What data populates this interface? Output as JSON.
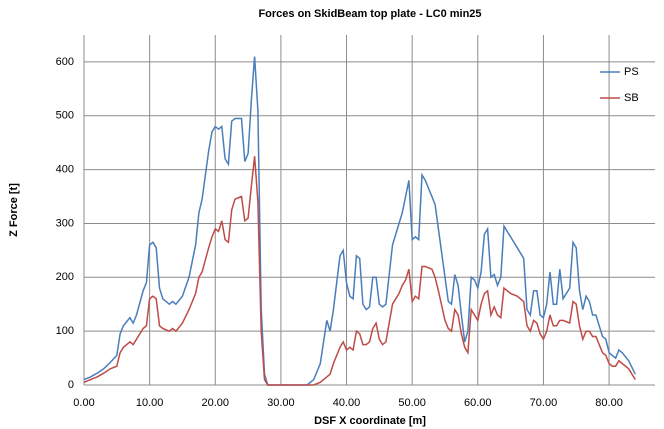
{
  "chart_data": {
    "type": "line",
    "title": "Forces on SkidBeam top plate - LC0 min25",
    "x_label": "DSF X coordinate [m]",
    "y_label": "Z Force [t]",
    "x": [
      0,
      1,
      2,
      3,
      4,
      5,
      5.5,
      6,
      7,
      7.5,
      8,
      9,
      9.5,
      10,
      10.5,
      11,
      11.5,
      12,
      13,
      13.5,
      14,
      15,
      16,
      17,
      17.5,
      18,
      19,
      19.5,
      20,
      20.5,
      21,
      21.5,
      22,
      22.5,
      23,
      24,
      24.5,
      25,
      25.5,
      26,
      26.5,
      27,
      27.5,
      28,
      30,
      32,
      34,
      35,
      36,
      37,
      37.5,
      38,
      39,
      39.5,
      40,
      40.5,
      41,
      41.5,
      42,
      42.5,
      43,
      43.5,
      44,
      44.5,
      45,
      45.5,
      46,
      47,
      48,
      48.5,
      49,
      49.5,
      50,
      50.5,
      51,
      51.5,
      52,
      53,
      53.5,
      54,
      55,
      55.5,
      56,
      56.5,
      57,
      57.5,
      58,
      58.5,
      59,
      59.5,
      60,
      60.5,
      61,
      61.5,
      62,
      62.5,
      63,
      63.5,
      64,
      65,
      66,
      67,
      67.5,
      68,
      68.5,
      69,
      69.5,
      70,
      70.5,
      71,
      71.5,
      72,
      72.5,
      73,
      74,
      74.5,
      75,
      75.5,
      76,
      76.5,
      77,
      77.5,
      78,
      79,
      79.5,
      80,
      80.5,
      81,
      81.5,
      82,
      83,
      84
    ],
    "series": [
      {
        "name": "PS",
        "color": "#4a7ebb",
        "values": [
          10,
          15,
          22,
          30,
          42,
          55,
          95,
          110,
          125,
          115,
          130,
          175,
          190,
          260,
          265,
          255,
          180,
          160,
          150,
          155,
          150,
          165,
          200,
          260,
          320,
          345,
          435,
          470,
          480,
          475,
          480,
          420,
          410,
          490,
          495,
          495,
          415,
          430,
          530,
          610,
          510,
          140,
          20,
          0,
          0,
          0,
          0,
          10,
          40,
          120,
          100,
          140,
          240,
          250,
          190,
          165,
          160,
          240,
          235,
          150,
          140,
          145,
          200,
          200,
          150,
          145,
          150,
          260,
          300,
          320,
          350,
          380,
          270,
          275,
          270,
          390,
          380,
          350,
          335,
          290,
          200,
          155,
          150,
          205,
          185,
          130,
          80,
          100,
          200,
          195,
          180,
          210,
          280,
          290,
          200,
          205,
          185,
          200,
          295,
          275,
          255,
          235,
          140,
          130,
          175,
          175,
          130,
          125,
          150,
          210,
          150,
          150,
          215,
          160,
          180,
          265,
          255,
          175,
          140,
          165,
          155,
          130,
          130,
          90,
          85,
          60,
          55,
          50,
          65,
          60,
          45,
          20
        ]
      },
      {
        "name": "SB",
        "color": "#be4b48",
        "values": [
          5,
          10,
          15,
          22,
          30,
          35,
          60,
          70,
          80,
          75,
          85,
          105,
          110,
          160,
          165,
          160,
          110,
          105,
          100,
          105,
          100,
          115,
          140,
          170,
          200,
          210,
          255,
          275,
          290,
          285,
          305,
          270,
          265,
          325,
          345,
          350,
          305,
          310,
          370,
          425,
          340,
          100,
          10,
          0,
          0,
          0,
          0,
          0,
          5,
          15,
          20,
          40,
          70,
          80,
          65,
          70,
          65,
          100,
          95,
          75,
          75,
          80,
          105,
          115,
          85,
          75,
          80,
          150,
          170,
          185,
          195,
          215,
          155,
          165,
          160,
          220,
          220,
          215,
          200,
          175,
          120,
          105,
          100,
          140,
          130,
          95,
          70,
          60,
          140,
          130,
          120,
          150,
          170,
          175,
          130,
          145,
          130,
          125,
          180,
          170,
          165,
          155,
          110,
          100,
          120,
          115,
          95,
          85,
          100,
          130,
          110,
          110,
          120,
          120,
          115,
          155,
          150,
          110,
          85,
          100,
          100,
          90,
          90,
          60,
          55,
          40,
          35,
          35,
          45,
          40,
          30,
          10
        ]
      }
    ],
    "xlim": [
      0,
      87
    ],
    "xticks": [
      {
        "value": 0,
        "label": "0.00"
      },
      {
        "value": 10,
        "label": "10.00"
      },
      {
        "value": 20,
        "label": "20.00"
      },
      {
        "value": 30,
        "label": "30.00"
      },
      {
        "value": 40,
        "label": "40.00"
      },
      {
        "value": 50,
        "label": "50.00"
      },
      {
        "value": 60,
        "label": "60.00"
      },
      {
        "value": 70,
        "label": "70.00"
      },
      {
        "value": 80,
        "label": "80.00"
      }
    ],
    "ylim": [
      0,
      650
    ],
    "yticks": [
      0,
      100,
      200,
      300,
      400,
      500,
      600
    ],
    "grid": true,
    "legend": "upper right"
  }
}
